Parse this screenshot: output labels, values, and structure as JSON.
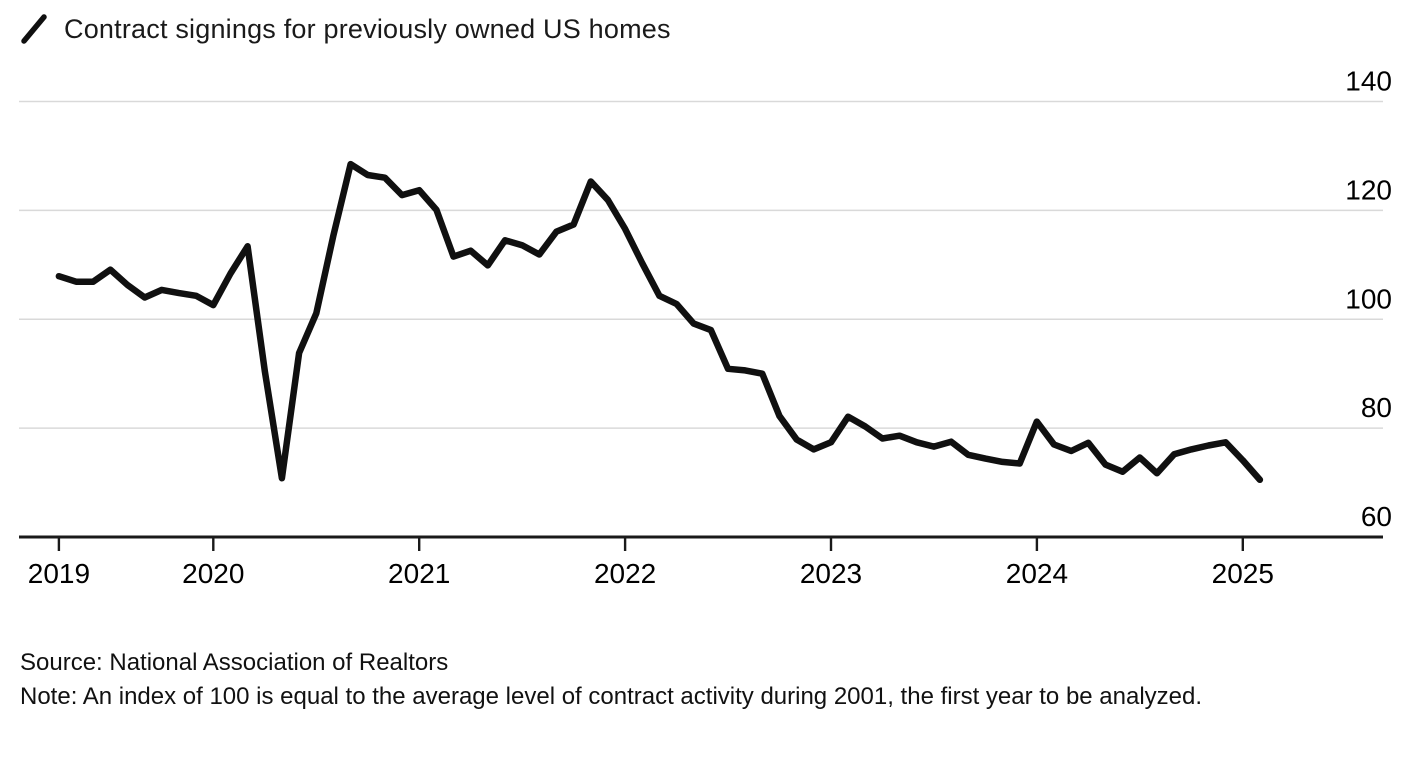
{
  "legend": {
    "label": "Contract signings for previously owned US homes"
  },
  "footer": {
    "source": "Source: National Association of Realtors",
    "note": "Note: An index of 100 is equal to the average level of contract activity during 2001, the first year to be analyzed."
  },
  "colors": {
    "line": "#101010",
    "grid": "#d9d9d9",
    "axis": "#1a1a1a",
    "text": "#000000"
  },
  "chart_data": {
    "type": "line",
    "title": "Contract signings for previously owned US homes",
    "frequency": "monthly",
    "start_month": "2019-03",
    "end_month": "2025-01",
    "values": [
      107.9,
      106.9,
      106.9,
      109.1,
      106.3,
      104.0,
      105.4,
      104.8,
      104.3,
      102.6,
      108.4,
      113.4,
      90.5,
      70.8,
      93.8,
      101.1,
      115.4,
      128.5,
      126.5,
      126.0,
      122.8,
      123.7,
      120.1,
      111.5,
      112.6,
      109.9,
      114.5,
      113.6,
      111.9,
      116.1,
      117.4,
      125.3,
      121.9,
      116.6,
      110.3,
      104.3,
      102.8,
      99.2,
      98.0,
      90.9,
      90.6,
      90.0,
      82.2,
      77.9,
      76.1,
      77.4,
      82.1,
      80.3,
      78.1,
      78.6,
      77.4,
      76.6,
      77.5,
      75.1,
      74.4,
      73.8,
      73.5,
      81.2,
      77.0,
      75.8,
      77.3,
      73.3,
      72.0,
      74.6,
      71.7,
      75.2,
      76.1,
      76.8,
      77.4,
      74.1,
      70.5
    ],
    "x_tick_labels": [
      "2019",
      "2020",
      "2021",
      "2022",
      "2023",
      "2024",
      "2025"
    ],
    "y_ticks": [
      60,
      80,
      100,
      120,
      140
    ],
    "ylim": [
      60,
      140
    ],
    "grid": "horizontal",
    "legend_position": "top-left",
    "y_axis_side": "right"
  }
}
